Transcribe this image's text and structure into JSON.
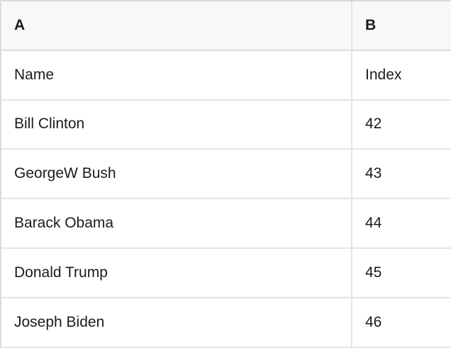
{
  "table": {
    "columns": [
      {
        "id": "A",
        "label": "A"
      },
      {
        "id": "B",
        "label": "B"
      }
    ],
    "rows": [
      {
        "cells": [
          "Name",
          "Index"
        ]
      },
      {
        "cells": [
          "Bill Clinton",
          "42"
        ]
      },
      {
        "cells": [
          "GeorgeW Bush",
          "43"
        ]
      },
      {
        "cells": [
          "Barack Obama",
          "44"
        ]
      },
      {
        "cells": [
          "Donald Trump",
          "45"
        ]
      },
      {
        "cells": [
          "Joseph Biden",
          "46"
        ]
      }
    ]
  },
  "colors": {
    "header_background": "#f8f8f8",
    "row_background": "#ffffff",
    "border": "#e4e4e4",
    "outer_border": "#d9d9d9",
    "text": "#1b1b1b"
  }
}
